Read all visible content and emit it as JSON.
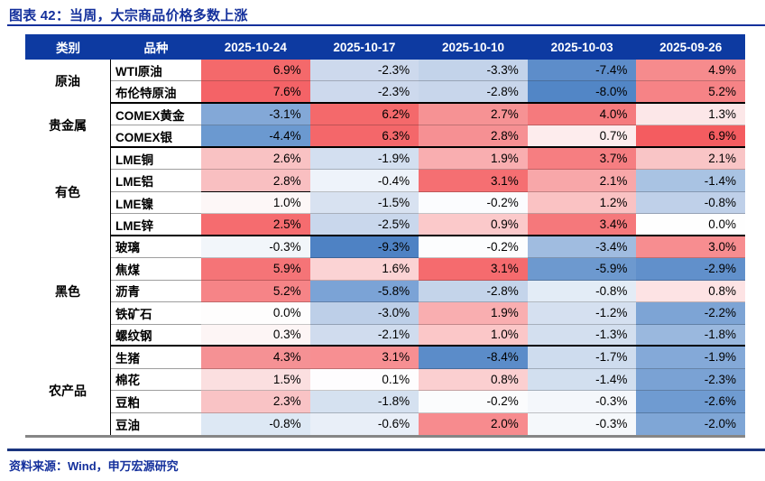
{
  "title": "图表 42：当周，大宗商品价格多数上涨",
  "source_note": "资料来源：Wind，申万宏源研究",
  "colors": {
    "brand_navy": "#14309c",
    "header_bg": "#0d3aa1",
    "header_text": "#ffffff",
    "rule_navy": "#1a357f",
    "table_bottom_gray": "#868686",
    "positive_max": "#f4696b",
    "negative_max": "#4e82c4",
    "neutral": "#ffffff"
  },
  "chart_data": {
    "type": "table",
    "title": "图表 42：当周，大宗商品价格多数上涨",
    "value_format": "percent_1dp",
    "legend": "red = weekly gain, blue = weekly decline (heatmap shading)",
    "columns": [
      "类别",
      "品种",
      "2025-10-24",
      "2025-10-17",
      "2025-10-10",
      "2025-10-03",
      "2025-09-26"
    ],
    "groups": [
      {
        "category": "原油",
        "rows": [
          {
            "name": "WTI原油",
            "values": [
              6.9,
              -2.3,
              -3.3,
              -7.4,
              4.9
            ],
            "cell_colors": [
              "#f4696b",
              "#cdd9ed",
              "#c3d3ea",
              "#5d8dca",
              "#f68b8d"
            ]
          },
          {
            "name": "布伦特原油",
            "values": [
              7.6,
              -2.3,
              -2.8,
              -8.0,
              5.2
            ],
            "cell_colors": [
              "#f46367",
              "#cdd9ed",
              "#c8d6eb",
              "#5286c6",
              "#f68386"
            ]
          }
        ]
      },
      {
        "category": "贵金属",
        "rows": [
          {
            "name": "COMEX黄金",
            "values": [
              -3.1,
              6.2,
              2.7,
              4.0,
              1.3
            ],
            "cell_colors": [
              "#83a8d7",
              "#f4696b",
              "#f69294",
              "#f57a7d",
              "#fce7e8"
            ]
          },
          {
            "name": "COMEX银",
            "values": [
              -4.4,
              6.3,
              2.8,
              0.7,
              6.9
            ],
            "cell_colors": [
              "#6b99d0",
              "#f4676a",
              "#f69093",
              "#fdeced",
              "#f45c60"
            ]
          }
        ]
      },
      {
        "category": "有色",
        "rows": [
          {
            "name": "LME铜",
            "values": [
              2.6,
              -1.9,
              1.9,
              3.7,
              2.1
            ],
            "cell_colors": [
              "#f9c2c3",
              "#d3dff0",
              "#f9aeb0",
              "#f67e81",
              "#f9c5c6"
            ]
          },
          {
            "name": "LME铝",
            "values": [
              2.8,
              -0.4,
              3.1,
              2.1,
              -1.4
            ],
            "cell_colors": [
              "#f9bfc1",
              "#eef3fa",
              "#f56f72",
              "#f8a7a9",
              "#a9c3e3"
            ],
            "black_underline_col": 0
          },
          {
            "name": "LME镍",
            "values": [
              1.0,
              -1.5,
              -0.2,
              1.2,
              -0.8
            ],
            "cell_colors": [
              "#fdf7f7",
              "#d8e2f1",
              "#fbfcfe",
              "#fac2c3",
              "#bfd0e9"
            ]
          },
          {
            "name": "LME锌",
            "values": [
              2.5,
              -2.5,
              0.9,
              3.4,
              0.0
            ],
            "cell_colors": [
              "#f56c6f",
              "#c9d7ec",
              "#fbc9ca",
              "#f5787b",
              "#fefefe"
            ]
          }
        ]
      },
      {
        "category": "黑色",
        "rows": [
          {
            "name": "玻璃",
            "values": [
              -0.3,
              -9.3,
              -0.2,
              -3.4,
              3.0
            ],
            "cell_colors": [
              "#f2f6fa",
              "#4e82c4",
              "#fcfdfe",
              "#a0bce0",
              "#f78d90"
            ]
          },
          {
            "name": "焦煤",
            "values": [
              5.9,
              1.6,
              3.1,
              -5.9,
              -2.9
            ],
            "cell_colors": [
              "#f57477",
              "#fbd3d4",
              "#f56b6e",
              "#6d99cf",
              "#6190cb"
            ]
          },
          {
            "name": "沥青",
            "values": [
              5.2,
              -5.8,
              -2.8,
              -0.8,
              0.8
            ],
            "cell_colors": [
              "#f68487",
              "#7ba3d6",
              "#c4d4ea",
              "#e3ecf6",
              "#fde3e4"
            ]
          },
          {
            "name": "铁矿石",
            "values": [
              0.0,
              -3.0,
              1.9,
              -1.2,
              -2.2
            ],
            "cell_colors": [
              "#fefdfd",
              "#bdcfe8",
              "#f9aeb0",
              "#d5e0f0",
              "#7da4d5"
            ]
          },
          {
            "name": "螺纹钢",
            "values": [
              0.3,
              -2.1,
              1.0,
              -1.3,
              -1.8
            ],
            "cell_colors": [
              "#fdf5f5",
              "#d0dcee",
              "#fbc7c8",
              "#d3dfef",
              "#9ab8de"
            ]
          }
        ]
      },
      {
        "category": "农产品",
        "rows": [
          {
            "name": "生猪",
            "values": [
              4.3,
              3.1,
              -8.4,
              -1.7,
              -1.9
            ],
            "cell_colors": [
              "#f59194",
              "#f78f92",
              "#5b8cc9",
              "#cedcee",
              "#84a9d8"
            ]
          },
          {
            "name": "棉花",
            "values": [
              1.5,
              0.1,
              0.8,
              -1.4,
              -2.3
            ],
            "cell_colors": [
              "#fbdfe0",
              "#fefdfe",
              "#fbcfd0",
              "#d2dfef",
              "#7aa2d4"
            ]
          },
          {
            "name": "豆粕",
            "values": [
              2.3,
              -1.8,
              -0.2,
              -0.3,
              -2.6
            ],
            "cell_colors": [
              "#f9c3c5",
              "#d5e1f0",
              "#fbfcfd",
              "#f4f7fb",
              "#6f9bd1"
            ]
          },
          {
            "name": "豆油",
            "values": [
              -0.8,
              -0.6,
              2.0,
              -0.3,
              -2.0
            ],
            "cell_colors": [
              "#dde8f4",
              "#e9eff8",
              "#f78b8e",
              "#f5f8fb",
              "#7fa6d6"
            ]
          }
        ]
      }
    ]
  }
}
